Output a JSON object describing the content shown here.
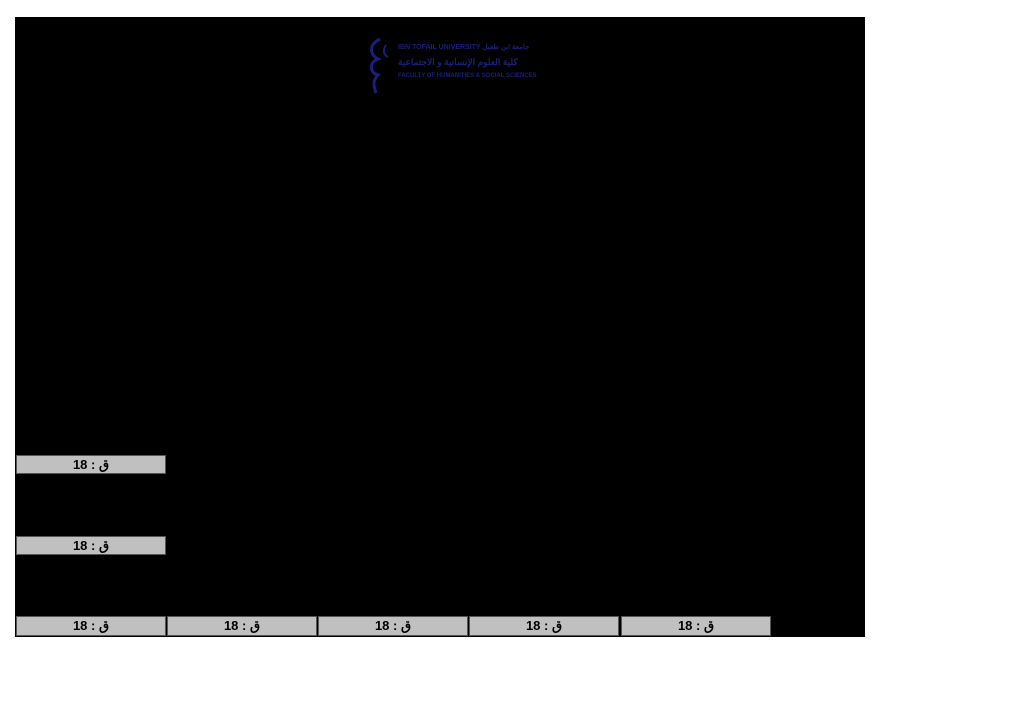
{
  "logo": {
    "line1": "IBN TOFAIL UNIVERSITY جامعة ابن طفيل",
    "line2": "كلية العلوم الإنسانية و الاجتماعية",
    "line3": "FACULTY OF HUMANITIES & SOCIAL SCIENCES",
    "color": "#1a1f7a"
  },
  "cells": {
    "row1": [
      "ق : 18"
    ],
    "row2": [
      "ق : 18"
    ],
    "row3": [
      "ق : 18",
      "ق : 18",
      "ق : 18",
      "ق : 18",
      "ق : 18"
    ]
  }
}
